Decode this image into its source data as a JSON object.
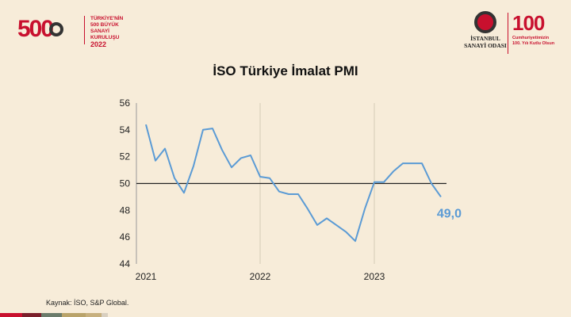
{
  "branding": {
    "left_logo": {
      "text": "500",
      "caption_lines": [
        "TÜRKİYE'NİN",
        "500 BÜYÜK SANAYİ",
        "KURULUŞU"
      ],
      "year": "2022"
    },
    "iso_logo": {
      "caption_line1": "İSTANBUL",
      "caption_line2": "SANAYİ ODASI"
    },
    "centennial_logo": {
      "text": "100",
      "caption_line1": "Cumhuriyetimizin",
      "caption_line2": "100. Yılı Kutlu Olsun"
    }
  },
  "colors": {
    "background": "#f7ecd9",
    "line": "#5b9bd5",
    "reference_line": "#222222",
    "grid": "#d6cbb8",
    "brand_red": "#c8102e"
  },
  "chart_data": {
    "type": "line",
    "title": "İSO Türkiye İmalat PMI",
    "xlabel": "",
    "ylabel": "",
    "x_tick_labels": [
      "2021",
      "2022",
      "2023"
    ],
    "ylim": [
      44,
      56
    ],
    "y_ticks": [
      "44",
      "46",
      "48",
      "50",
      "52",
      "54",
      "56"
    ],
    "grid": "vertical lines at each year",
    "reference_line": 50,
    "end_label": "49,0",
    "series": [
      {
        "x": [
          "2021-01",
          "2021-02",
          "2021-03",
          "2021-04",
          "2021-05",
          "2021-06",
          "2021-07",
          "2021-08",
          "2021-09",
          "2021-10",
          "2021-11",
          "2021-12",
          "2022-01",
          "2022-02",
          "2022-03",
          "2022-04",
          "2022-05",
          "2022-06",
          "2022-07",
          "2022-08",
          "2022-09",
          "2022-10",
          "2022-11",
          "2022-12",
          "2023-01",
          "2023-02",
          "2023-03",
          "2023-04",
          "2023-05",
          "2023-06",
          "2023-07",
          "2023-08"
        ],
        "values": [
          54.4,
          51.7,
          52.6,
          50.4,
          49.3,
          51.3,
          54.0,
          54.1,
          52.5,
          51.2,
          51.9,
          52.1,
          50.5,
          50.4,
          49.4,
          49.2,
          49.2,
          48.1,
          46.9,
          47.4,
          46.9,
          46.4,
          45.7,
          48.1,
          50.1,
          50.1,
          50.9,
          51.5,
          51.5,
          51.5,
          50.0,
          49.0
        ]
      }
    ]
  },
  "source": "Kaynak: İSO, S&P Global.",
  "footer_strip_colors": [
    "#c8102e",
    "#7a1f2b",
    "#6b7c6b",
    "#b9a36a",
    "#c7b07e",
    "#d8cfc0"
  ]
}
